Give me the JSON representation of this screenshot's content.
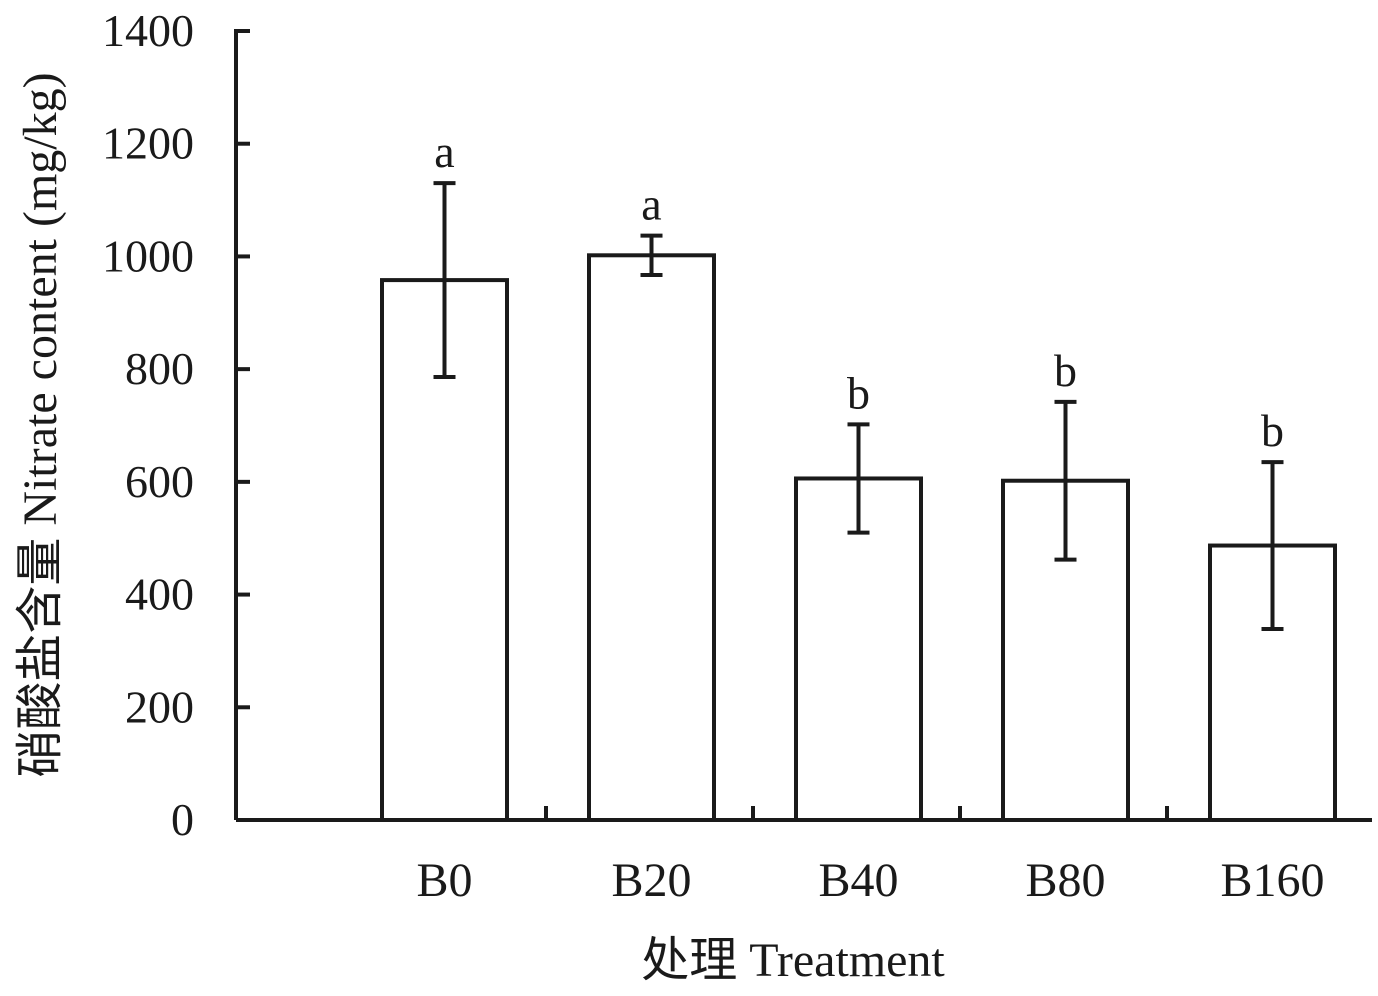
{
  "chart_data": {
    "type": "bar",
    "categories": [
      "B0",
      "B20",
      "B40",
      "B80",
      "B160"
    ],
    "values": [
      958,
      1002,
      606,
      602,
      487
    ],
    "error": [
      172,
      35,
      96,
      140,
      148
    ],
    "significance": [
      "a",
      "a",
      "b",
      "b",
      "b"
    ],
    "xlabel": "处理 Treatment",
    "ylabel": "硝酸盐含量 Nitrate content (mg/kg)",
    "ylim": [
      0,
      1400
    ],
    "yticks": [
      0,
      200,
      400,
      600,
      800,
      1000,
      1200,
      1400
    ],
    "grid": false,
    "legend": "none"
  }
}
